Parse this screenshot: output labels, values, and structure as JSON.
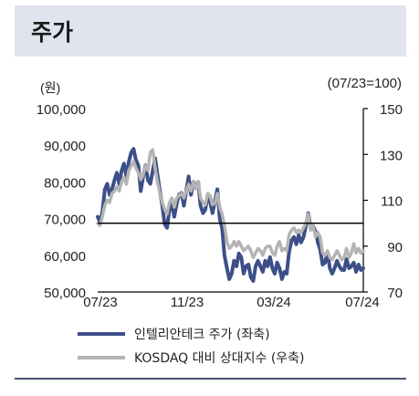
{
  "header": {
    "title": "주가"
  },
  "chart_data": {
    "type": "line",
    "left_axis_unit": "(원)",
    "right_axis_unit": "(07/23=100)",
    "left_ylim": [
      50000,
      100000
    ],
    "left_ticks": [
      "100,000",
      "90,000",
      "80,000",
      "70,000",
      "60,000",
      "50,000"
    ],
    "right_ylim": [
      70,
      150
    ],
    "right_ticks": [
      "150",
      "130",
      "110",
      "90",
      "70"
    ],
    "x_ticks": [
      "07/23",
      "11/23",
      "03/24",
      "07/24"
    ],
    "reference_line_right": 100,
    "grid": false,
    "legend_position": "bottom",
    "colors": {
      "stock": "#3d4f88",
      "index": "#b4b4b4",
      "reference": "#000000"
    },
    "series": [
      {
        "name": "인텔리안테크 주가 (좌축)",
        "axis": "left",
        "values": [
          70500,
          69000,
          72000,
          78000,
          79500,
          76500,
          78000,
          80500,
          82500,
          79500,
          83000,
          85000,
          81500,
          85500,
          88000,
          89000,
          86000,
          84500,
          77500,
          81500,
          84500,
          80500,
          79500,
          83000,
          86500,
          82000,
          77500,
          73500,
          68500,
          67500,
          72500,
          74000,
          70500,
          74000,
          76500,
          77000,
          73500,
          77500,
          81500,
          76500,
          80000,
          78500,
          80000,
          73500,
          71500,
          72500,
          76500,
          74500,
          71500,
          75000,
          78000,
          70000,
          67500,
          60000,
          56500,
          53500,
          55000,
          58500,
          57000,
          60500,
          59500,
          55000,
          57000,
          57500,
          54000,
          53000,
          57000,
          58500,
          57000,
          55500,
          58500,
          57000,
          59500,
          56500,
          55000,
          58000,
          56500,
          53500,
          55500,
          55000,
          61000,
          64000,
          65000,
          63000,
          65500,
          63500,
          65000,
          68000,
          71500,
          67500,
          68000,
          66500,
          63500,
          61500,
          57500,
          58000,
          61000,
          56500,
          55000,
          56500,
          58500,
          57000,
          56000,
          56000,
          59000,
          56500,
          57000,
          58000,
          55500,
          57500,
          56000,
          56500
        ]
      },
      {
        "name": "KOSDAQ 대비 상대지수 (우축)",
        "axis": "right",
        "values": [
          100,
          99,
          103,
          108,
          110,
          109,
          113,
          114,
          116,
          114,
          118,
          120,
          117,
          123,
          125,
          127,
          124,
          122,
          119,
          121,
          125,
          123,
          131,
          132,
          124,
          118,
          113,
          109,
          106,
          104,
          109,
          111,
          107,
          111,
          112,
          113,
          111,
          114,
          117,
          114,
          118,
          115,
          118,
          111,
          109,
          108,
          113,
          112,
          108,
          109,
          113,
          107,
          104,
          99,
          92,
          89,
          90,
          92,
          90,
          92,
          90,
          88,
          89,
          90,
          88,
          85,
          87,
          89,
          88,
          86,
          89,
          90,
          90,
          87,
          86,
          90,
          92,
          88,
          89,
          88,
          95,
          97,
          98,
          96,
          97,
          96,
          98,
          100,
          104,
          97,
          99,
          94,
          96,
          94,
          87,
          86,
          88,
          85,
          84,
          86,
          88,
          86,
          84,
          85,
          89,
          85,
          87,
          91,
          87,
          89,
          87,
          88
        ]
      }
    ]
  },
  "legend": [
    {
      "label": "인텔리안테크 주가 (좌축)"
    },
    {
      "label": "KOSDAQ 대비 상대지수 (우축)"
    }
  ]
}
